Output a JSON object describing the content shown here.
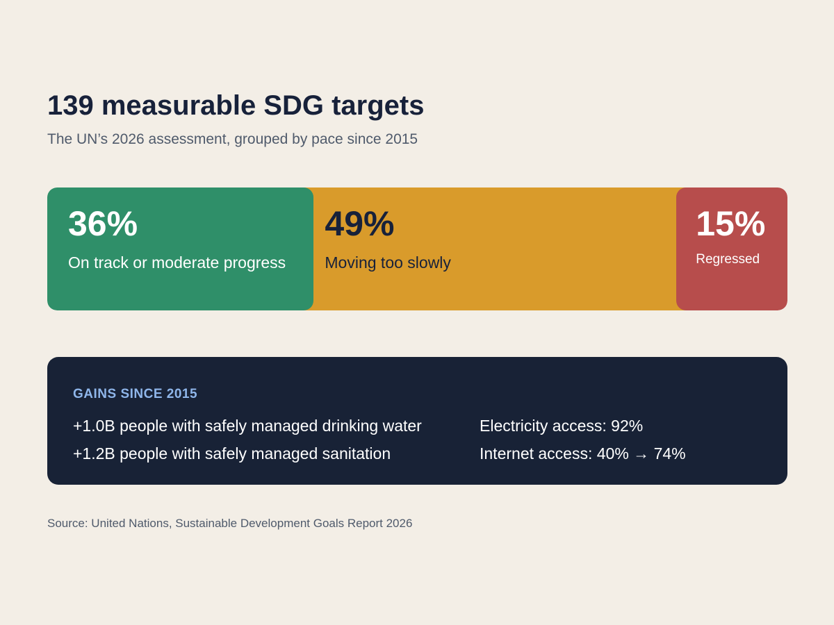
{
  "title": "139 measurable SDG targets",
  "subtitle": "The UN’s 2026 assessment, grouped by pace since 2015",
  "chart_data": {
    "type": "bar",
    "orientation": "horizontal-stacked",
    "title": "139 measurable SDG targets",
    "subtitle": "The UN’s 2026 assessment, grouped by pace since 2015",
    "categories": [
      "On track or moderate progress",
      "Moving too slowly",
      "Regressed"
    ],
    "values": [
      36,
      49,
      15
    ],
    "value_labels": [
      "36%",
      "49%",
      "15%"
    ],
    "unit": "%",
    "colors": [
      "#2f8f69",
      "#d99b2b",
      "#b74d4c"
    ],
    "legend": "none",
    "grid": false
  },
  "gains": {
    "heading": "GAINS SINCE 2015",
    "items": [
      "+1.0B people with safely managed drinking water",
      "+1.2B people with safely managed sanitation",
      "Electricity access: 92%",
      "Internet access: 40% → 74%"
    ]
  },
  "source": "Source: United Nations, Sustainable Development Goals Report 2026"
}
